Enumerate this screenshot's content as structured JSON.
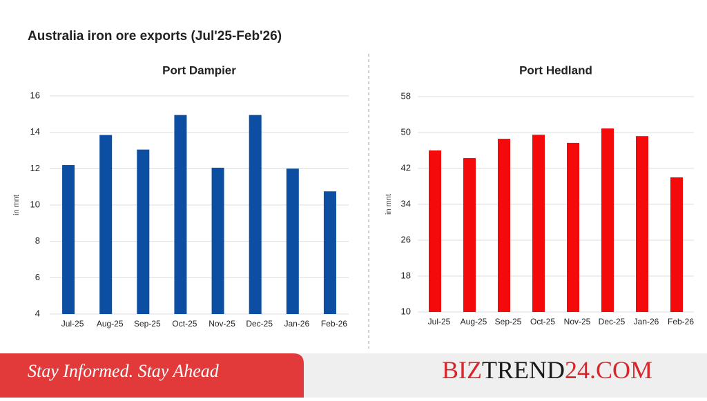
{
  "title": "Australia iron ore exports (Jul'25-Feb'26)",
  "chart_data": [
    {
      "type": "bar",
      "title": "Port Dampier",
      "ylabel": "in mnt",
      "categories": [
        "Jul-25",
        "Aug-25",
        "Sep-25",
        "Oct-25",
        "Nov-25",
        "Dec-25",
        "Jan-26",
        "Feb-26"
      ],
      "values": [
        12.2,
        13.85,
        13.05,
        14.95,
        12.05,
        14.95,
        12.0,
        10.75
      ],
      "color": "#0b4ea2",
      "ylim": [
        4,
        16
      ],
      "yticks": [
        4,
        6,
        8,
        10,
        12,
        14,
        16
      ],
      "grid": true
    },
    {
      "type": "bar",
      "title": "Port Hedland",
      "ylabel": "in mnt",
      "categories": [
        "Jul-25",
        "Aug-25",
        "Sep-25",
        "Oct-25",
        "Nov-25",
        "Dec-25",
        "Jan-26",
        "Feb-26"
      ],
      "values": [
        46.0,
        44.3,
        48.6,
        49.5,
        47.7,
        50.9,
        49.2,
        40.0
      ],
      "color": "#f40a0a",
      "ylim": [
        10,
        58
      ],
      "yticks": [
        10,
        18,
        26,
        34,
        42,
        50,
        58
      ],
      "grid": true
    }
  ],
  "footer": {
    "slogan": "Stay Informed. Stay Ahead",
    "brand": [
      "BIZ",
      "TREND",
      "24.COM"
    ]
  }
}
